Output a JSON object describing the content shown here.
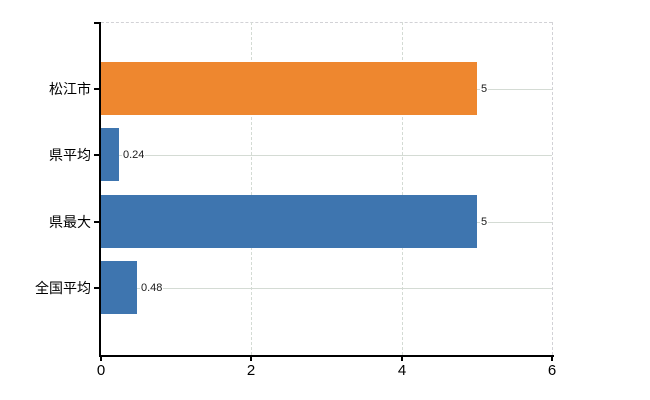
{
  "chart_data": {
    "type": "bar",
    "orientation": "horizontal",
    "title": "",
    "categories": [
      "松江市",
      "県平均",
      "県最大",
      "全国平均"
    ],
    "values": [
      5,
      0.24,
      5,
      0.48
    ],
    "value_labels": [
      "5",
      "0.24",
      "5",
      "0.48"
    ],
    "bar_colors": [
      "#EE872F",
      "#3E75AF",
      "#3E75AF",
      "#3E75AF"
    ],
    "xlim": [
      0,
      6
    ],
    "x_ticks": [
      {
        "value": 0,
        "label": "0"
      },
      {
        "value": 2,
        "label": "2"
      },
      {
        "value": 4,
        "label": "4"
      },
      {
        "value": 6,
        "label": "6"
      }
    ],
    "xlabel": "",
    "ylabel": "",
    "legend": "none",
    "grid": "on"
  },
  "colors": {
    "background": "#ffffff",
    "axis": "#000000",
    "gridline": "#d4dbd4",
    "dashed_border": "#d2d2d6",
    "orange_bar": "#EE872F",
    "blue_bar": "#3E75AF",
    "label_text": "#000000"
  }
}
